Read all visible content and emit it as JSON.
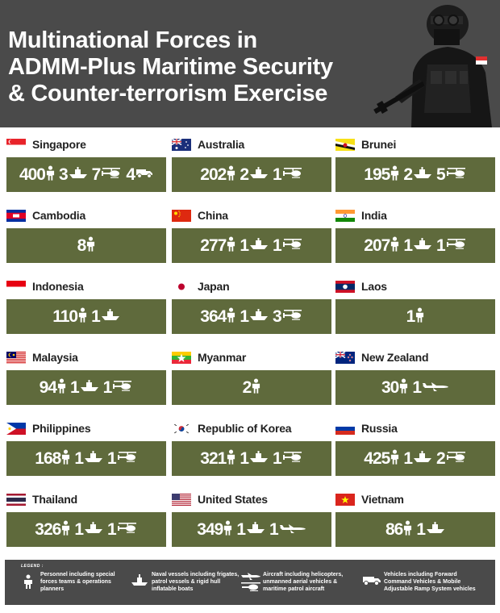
{
  "header": {
    "title_line1": "Multinational Forces in",
    "title_line2": "ADMM-Plus Maritime Security",
    "title_line3": "& Counter-terrorism Exercise"
  },
  "colors": {
    "header_bg": "#4a4a4a",
    "box_bg": "#5f6a3c",
    "text_white": "#ffffff"
  },
  "countries": [
    {
      "name": "Singapore",
      "flag": "singapore-flag",
      "personnel": "400",
      "vessels": "3",
      "aircraft": "7",
      "vehicles": "4"
    },
    {
      "name": "Australia",
      "flag": "australia-flag",
      "personnel": "202",
      "vessels": "2",
      "aircraft": "1"
    },
    {
      "name": "Brunei",
      "flag": "brunei-flag",
      "personnel": "195",
      "vessels": "2",
      "aircraft": "5"
    },
    {
      "name": "Cambodia",
      "flag": "cambodia-flag",
      "personnel": "8"
    },
    {
      "name": "China",
      "flag": "china-flag",
      "personnel": "277",
      "vessels": "1",
      "aircraft": "1"
    },
    {
      "name": "India",
      "flag": "india-flag",
      "personnel": "207",
      "vessels": "1",
      "aircraft": "1"
    },
    {
      "name": "Indonesia",
      "flag": "indonesia-flag",
      "personnel": "110",
      "vessels": "1"
    },
    {
      "name": "Japan",
      "flag": "japan-flag",
      "personnel": "364",
      "vessels": "1",
      "aircraft": "3"
    },
    {
      "name": "Laos",
      "flag": "laos-flag",
      "personnel": "1"
    },
    {
      "name": "Malaysia",
      "flag": "malaysia-flag",
      "personnel": "94",
      "vessels": "1",
      "aircraft": "1"
    },
    {
      "name": "Myanmar",
      "flag": "myanmar-flag",
      "personnel": "2"
    },
    {
      "name": "New Zealand",
      "flag": "new-zealand-flag",
      "personnel": "30",
      "aircraft_plane": "1"
    },
    {
      "name": "Philippines",
      "flag": "philippines-flag",
      "personnel": "168",
      "vessels": "1",
      "aircraft": "1"
    },
    {
      "name": "Republic of Korea",
      "flag": "korea-flag",
      "personnel": "321",
      "vessels": "1",
      "aircraft": "1"
    },
    {
      "name": "Russia",
      "flag": "russia-flag",
      "personnel": "425",
      "vessels": "1",
      "aircraft": "2"
    },
    {
      "name": "Thailand",
      "flag": "thailand-flag",
      "personnel": "326",
      "vessels": "1",
      "aircraft": "1"
    },
    {
      "name": "United States",
      "flag": "usa-flag",
      "personnel": "349",
      "vessels": "1",
      "aircraft_plane": "1"
    },
    {
      "name": "Vietnam",
      "flag": "vietnam-flag",
      "personnel": "86",
      "vessels": "1"
    }
  ],
  "legend": {
    "title": "LEGEND :",
    "personnel": "Personnel including special forces teams & operations planners",
    "vessels": "Naval vessels including frigates, patrol vessels & rigid hull inflatable boats",
    "aircraft": "Aircraft including helicopters, unmanned aerial vehicles & maritime patrol aircraft",
    "vehicles": "Vehicles including Forward Command Vehicles & Mobile Adjustable Ramp System vehicles"
  }
}
